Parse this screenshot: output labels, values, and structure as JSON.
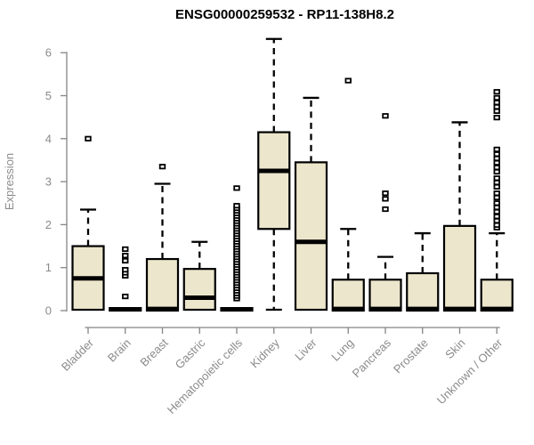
{
  "chart_data": {
    "type": "boxplot",
    "title": "ENSG00000259532 - RP11-138H8.2",
    "xlabel": "",
    "ylabel": "Expression",
    "ylim": [
      0,
      6.5
    ],
    "yticks": [
      0,
      1,
      2,
      3,
      4,
      5,
      6
    ],
    "grid": false,
    "legend": "none",
    "colors": {
      "box_fill": "#ece6cc",
      "box_border": "#000000",
      "median": "#000000",
      "whisker": "#000000",
      "outlier": "#000000",
      "axis": "#858585",
      "tick_label": "#8b8b8b",
      "axis_title": "#8b8b8b",
      "title": "#000000",
      "background": "#ffffff"
    },
    "categories": [
      "Bladder",
      "Brain",
      "Breast",
      "Gastric",
      "Hematopoietic cells",
      "Kidney",
      "Liver",
      "Lung",
      "Pancreas",
      "Prostate",
      "Skin",
      "Unknown / Other"
    ],
    "boxes": [
      {
        "category": "Bladder",
        "low": 0,
        "q1": 0.02,
        "median": 0.75,
        "q3": 1.5,
        "high": 2.35,
        "outliers": [
          4.0
        ]
      },
      {
        "category": "Brain",
        "low": 0,
        "q1": 0,
        "median": 0.03,
        "q3": 0.06,
        "high": 0.06,
        "outliers": [
          0.33,
          0.81,
          0.88,
          0.95,
          1.16,
          1.28,
          1.43
        ]
      },
      {
        "category": "Breast",
        "low": 0,
        "q1": 0,
        "median": 0.04,
        "q3": 1.2,
        "high": 2.95,
        "outliers": [
          3.35
        ]
      },
      {
        "category": "Gastric",
        "low": 0,
        "q1": 0.02,
        "median": 0.3,
        "q3": 0.97,
        "high": 1.6,
        "outliers": []
      },
      {
        "category": "Hematopoietic cells",
        "low": 0,
        "q1": 0,
        "median": 0.03,
        "q3": 0.06,
        "high": 0.06,
        "outliers": [
          0.28,
          0.34,
          0.4,
          0.46,
          0.52,
          0.58,
          0.64,
          0.7,
          0.76,
          0.82,
          0.88,
          0.94,
          1.0,
          1.06,
          1.12,
          1.18,
          1.24,
          1.3,
          1.36,
          1.42,
          1.48,
          1.54,
          1.6,
          1.66,
          1.72,
          1.78,
          1.84,
          1.9,
          1.96,
          2.02,
          2.08,
          2.14,
          2.2,
          2.26,
          2.32,
          2.38,
          2.44,
          2.85
        ]
      },
      {
        "category": "Kidney",
        "low": 0.02,
        "q1": 1.9,
        "median": 3.25,
        "q3": 4.15,
        "high": 6.32,
        "outliers": []
      },
      {
        "category": "Liver",
        "low": 0,
        "q1": 0.02,
        "median": 1.6,
        "q3": 3.45,
        "high": 4.95,
        "outliers": []
      },
      {
        "category": "Lung",
        "low": 0,
        "q1": 0,
        "median": 0.04,
        "q3": 0.72,
        "high": 1.9,
        "outliers": [
          5.35
        ]
      },
      {
        "category": "Pancreas",
        "low": 0,
        "q1": 0,
        "median": 0.04,
        "q3": 0.72,
        "high": 1.25,
        "outliers": [
          2.36,
          2.6,
          2.73,
          4.53
        ]
      },
      {
        "category": "Prostate",
        "low": 0,
        "q1": 0,
        "median": 0.04,
        "q3": 0.87,
        "high": 1.8,
        "outliers": []
      },
      {
        "category": "Skin",
        "low": 0,
        "q1": 0,
        "median": 0.04,
        "q3": 1.97,
        "high": 4.38,
        "outliers": []
      },
      {
        "category": "Unknown / Other",
        "low": 0,
        "q1": 0,
        "median": 0.04,
        "q3": 0.72,
        "high": 1.8,
        "outliers": [
          1.93,
          1.99,
          2.09,
          2.19,
          2.3,
          2.4,
          2.5,
          2.63,
          2.73,
          2.88,
          2.98,
          3.08,
          3.23,
          3.33,
          3.44,
          3.54,
          3.64,
          3.75,
          4.49,
          4.64,
          4.74,
          4.84,
          4.95,
          5.09
        ]
      }
    ]
  }
}
